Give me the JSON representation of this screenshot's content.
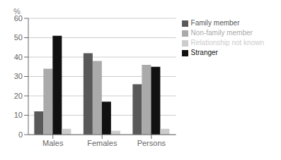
{
  "chart_data": {
    "type": "bar",
    "y_label": "%",
    "categories": [
      "Males",
      "Females",
      "Persons"
    ],
    "series": [
      {
        "name": "Family member",
        "color": "#595959",
        "values": [
          12,
          42,
          26
        ]
      },
      {
        "name": "Non-family member",
        "color": "#aaaaaa",
        "values": [
          34,
          38,
          36
        ]
      },
      {
        "name": "Stranger",
        "color": "#111111",
        "values": [
          51,
          17,
          35
        ]
      },
      {
        "name": "Relationship not known",
        "color": "#cccccc",
        "values": [
          3,
          2,
          3
        ]
      }
    ],
    "ylim": [
      0,
      60
    ],
    "yticks": [
      0,
      10,
      20,
      30,
      40,
      50,
      60
    ],
    "grid": true,
    "legend": "upper right"
  }
}
